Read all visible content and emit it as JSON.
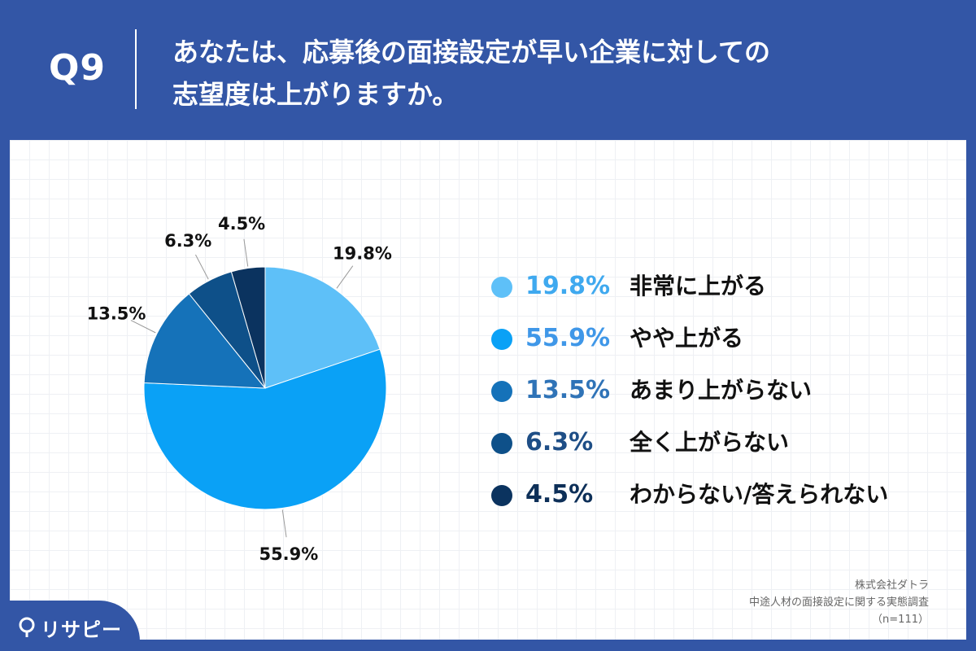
{
  "header": {
    "question_number": "Q9",
    "question_line1": "あなたは、応募後の面接設定が早い企業に対しての",
    "question_line2": "志望度は上がりますか。"
  },
  "chart_data": {
    "type": "pie",
    "start_angle": "12 o'clock",
    "direction": "clockwise",
    "slices": [
      {
        "label": "非常に上がる",
        "value": 19.8,
        "display": "19.8%",
        "color": "#5ec0f8",
        "legend_text_color": "#3fa9ef"
      },
      {
        "label": "やや上がる",
        "value": 55.9,
        "display": "55.9%",
        "color": "#0aa1f6",
        "legend_text_color": "#3f97e8"
      },
      {
        "label": "あまり上がらない",
        "value": 13.5,
        "display": "13.5%",
        "color": "#1572b9",
        "legend_text_color": "#2f73b7"
      },
      {
        "label": "全く上がらない",
        "value": 6.3,
        "display": "6.3%",
        "color": "#0e5089",
        "legend_text_color": "#1e4e86"
      },
      {
        "label": "わからない/答えられない",
        "value": 4.5,
        "display": "4.5%",
        "color": "#0b335f",
        "legend_text_color": "#0d2f58"
      }
    ]
  },
  "source": {
    "company": "株式会社ダトラ",
    "survey": "中途人材の面接設定に関する実態調査",
    "sample": "（n=111）"
  },
  "brand": {
    "name": "リサピー"
  }
}
